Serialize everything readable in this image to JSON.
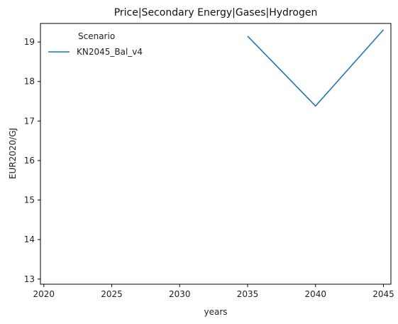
{
  "chart_data": {
    "type": "line",
    "title": "Price|Secondary Energy|Gases|Hydrogen",
    "xlabel": "years",
    "ylabel": "EUR2020/GJ",
    "x_ticks": [
      2020,
      2025,
      2030,
      2035,
      2040,
      2045
    ],
    "y_ticks": [
      13,
      14,
      15,
      16,
      17,
      18,
      19
    ],
    "xlim": [
      2019.75,
      2045.55
    ],
    "ylim": [
      12.87,
      19.47
    ],
    "grid": false,
    "legend": {
      "title": "Scenario",
      "placement": "top-left",
      "entries": [
        "KN2045_Bal_v4"
      ]
    },
    "series": [
      {
        "name": "KN2045_Bal_v4",
        "color": "#1f77b4",
        "x": [
          2035,
          2040,
          2045
        ],
        "y": [
          19.15,
          17.38,
          19.31
        ]
      }
    ]
  }
}
